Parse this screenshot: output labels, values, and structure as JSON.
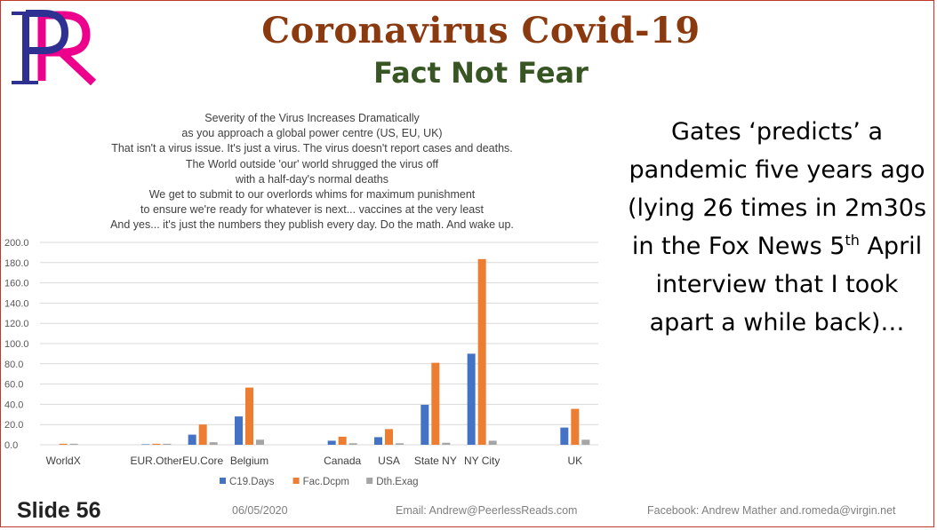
{
  "slide": {
    "title": "Coronavirus Covid-19",
    "subtitle": "Fact Not Fear",
    "number_label": "Slide 56",
    "date": "06/05/2020",
    "email": "Email: Andrew@PeerlessReads.com",
    "facebook": "Facebook: Andrew Mather and.romeda@virgin.net",
    "logo_icon": "pr-logo-icon",
    "colors": {
      "title": "#8B3A0F",
      "subtitle": "#375623",
      "border": "#c0392b",
      "logo_p": "#2E3192",
      "logo_r": "#EC008C"
    }
  },
  "side_text": {
    "line1": "Gates ‘predicts’ a",
    "line2": "pandemic five years ago",
    "line3": "(lying 26 times in 2m30s",
    "line4a": "in the Fox News 5",
    "line4sup": "th",
    "line4b": " April",
    "line5": "interview that I took",
    "line6": "apart a while back)…"
  },
  "chart_data": {
    "type": "bar",
    "title_lines": [
      "Severity of the Virus Increases Dramatically",
      "as you approach a global power centre (US, EU, UK)",
      "That isn't a virus issue. It's just a virus. The virus doesn't report cases and deaths.",
      "The World outside 'our' world shrugged the virus off",
      "with a half-day's normal deaths",
      "We get to submit to our overlords whims for maximum punishment",
      "to ensure we're ready for whatever is next... vaccines at the very least",
      "And yes... it's just the numbers they publish every day. Do the math. And wake up."
    ],
    "categories": [
      "WorldX",
      "",
      "EUR.Other",
      "EU.Core",
      "Belgium",
      "",
      "Canada",
      "USA",
      "State NY",
      "NY City",
      "",
      "UK"
    ],
    "series": [
      {
        "name": "C19.Days",
        "color": "#4472C4",
        "values": [
          0,
          0,
          0.5,
          10,
          28,
          0,
          4,
          7.5,
          39.5,
          90,
          0,
          17
        ]
      },
      {
        "name": "Fac.Dcpm",
        "color": "#ED7D31",
        "values": [
          1,
          0,
          1,
          20,
          56.5,
          0,
          8,
          15.5,
          81,
          183.5,
          0,
          35.5
        ]
      },
      {
        "name": "Dth.Exag",
        "color": "#A5A5A5",
        "values": [
          1,
          0,
          1,
          2.5,
          5,
          0,
          1.5,
          1.5,
          2,
          4,
          0,
          5
        ]
      }
    ],
    "yticks": [
      "0.0",
      "20.0",
      "40.0",
      "60.0",
      "80.0",
      "100.0",
      "120.0",
      "140.0",
      "160.0",
      "180.0",
      "200.0"
    ],
    "ylim": [
      0,
      200
    ],
    "grid": true,
    "legend_position": "bottom"
  }
}
